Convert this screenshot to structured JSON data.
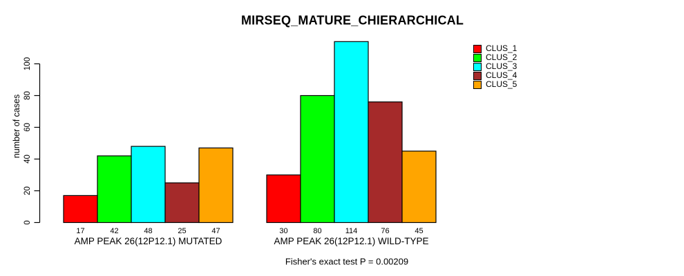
{
  "chart_data": {
    "type": "bar",
    "title": "MIRSEQ_MATURE_CHIERARCHICAL",
    "ylabel": "number of cases",
    "xlabel": "",
    "annotation": "Fisher's exact test P = 0.00209",
    "categories": [
      "AMP PEAK 26(12P12.1) MUTATED",
      "AMP PEAK 26(12P12.1) WILD-TYPE"
    ],
    "series": [
      {
        "name": "CLUS_1",
        "color": "#FF0000",
        "values": [
          17,
          30
        ]
      },
      {
        "name": "CLUS_2",
        "color": "#00FF00",
        "values": [
          42,
          80
        ]
      },
      {
        "name": "CLUS_3",
        "color": "#00FFFF",
        "values": [
          48,
          114
        ]
      },
      {
        "name": "CLUS_4",
        "color": "#A52A2A",
        "values": [
          25,
          76
        ]
      },
      {
        "name": "CLUS_5",
        "color": "#FFA500",
        "values": [
          47,
          45
        ]
      }
    ],
    "bar_value_labels": [
      [
        17,
        42,
        48,
        25,
        47
      ],
      [
        30,
        80,
        114,
        76,
        45
      ]
    ],
    "yticks": [
      0,
      20,
      40,
      60,
      80,
      100
    ],
    "ylim": [
      0,
      115
    ],
    "grid": false,
    "legend_position": "top-right",
    "legend_entries": [
      "CLUS_1",
      "CLUS_2",
      "CLUS_3",
      "CLUS_4",
      "CLUS_5"
    ],
    "axis_color": "#000000",
    "bar_border_color": "#000000",
    "background_color": "#FFFFFF"
  }
}
